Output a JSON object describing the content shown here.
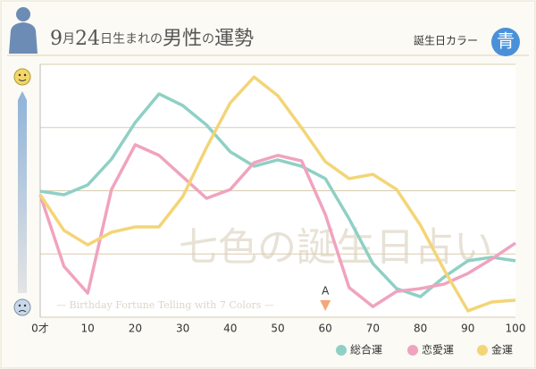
{
  "chart_data": {
    "type": "line",
    "title_parts": [
      "9",
      "月",
      "24",
      "日生まれの",
      "男性",
      "の",
      "運勢"
    ],
    "color_label": "誕生日カラー",
    "color_name": "青",
    "watermark": "七色の誕生日占い",
    "watermark_sub": "— Birthday Fortune Telling with 7 Colors —",
    "x": [
      0,
      5,
      10,
      15,
      20,
      25,
      30,
      35,
      40,
      45,
      50,
      55,
      60,
      65,
      70,
      75,
      80,
      85,
      90,
      95,
      100
    ],
    "xlim": [
      0,
      100
    ],
    "xticks": [
      {
        "value": 0,
        "label": "0才"
      },
      10,
      20,
      30,
      40,
      50,
      60,
      70,
      80,
      90,
      100
    ],
    "ylim": [
      0,
      100
    ],
    "yticks": [
      0,
      25,
      50,
      75,
      100
    ],
    "grid": true,
    "annotation": {
      "label": "A",
      "x": 60
    },
    "series": [
      {
        "name": "総合運",
        "color": "#8fd0c5",
        "values": [
          49.8,
          48.4,
          52.3,
          62.5,
          77,
          88.3,
          83.7,
          76,
          65.4,
          59.7,
          62.2,
          59.7,
          54.8,
          38.9,
          21.2,
          11.3,
          8.1,
          15.9,
          22.3,
          23.7,
          22.3
        ]
      },
      {
        "name": "恋愛運",
        "color": "#f0a3bf",
        "values": [
          48.4,
          20.1,
          9.5,
          50.5,
          68.2,
          64,
          55.5,
          47,
          50.5,
          61.1,
          64,
          61.8,
          40.6,
          11.7,
          4.2,
          10.2,
          11.3,
          13.1,
          17.3,
          23,
          29.3
        ]
      },
      {
        "name": "金運",
        "color": "#f3d577",
        "values": [
          48.4,
          34.3,
          28.6,
          33.6,
          35.7,
          35.7,
          47.7,
          67.1,
          84.8,
          95,
          87.6,
          74.9,
          61.5,
          54.8,
          56.5,
          50.5,
          36.4,
          18.7,
          2.5,
          6,
          6.7
        ]
      }
    ]
  }
}
